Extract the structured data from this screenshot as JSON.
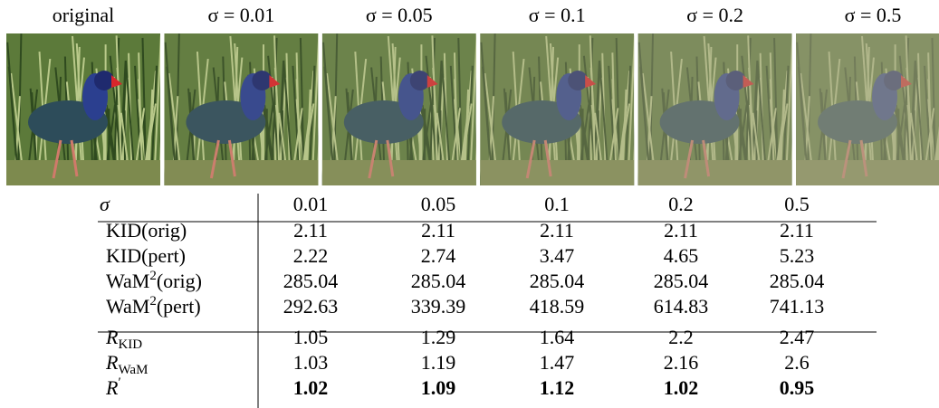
{
  "figure": {
    "panels": [
      "original",
      "σ = 0.01",
      "σ = 0.05",
      "σ = 0.1",
      "σ = 0.2",
      "σ = 0.5"
    ]
  },
  "table": {
    "header": {
      "label": "σ",
      "values": [
        0.01,
        0.05,
        0.1,
        0.2,
        0.5
      ]
    },
    "rows": [
      {
        "label": {
          "text": "KID(orig)"
        },
        "values": [
          2.11,
          2.11,
          2.11,
          2.11,
          2.11
        ]
      },
      {
        "label": {
          "text": "KID(pert)"
        },
        "values": [
          2.22,
          2.74,
          3.47,
          4.65,
          5.23
        ]
      },
      {
        "label": {
          "text": "WaM",
          "sup": "2",
          "after": "(orig)"
        },
        "values": [
          285.04,
          285.04,
          285.04,
          285.04,
          285.04
        ]
      },
      {
        "label": {
          "text": "WaM",
          "sup": "2",
          "after": "(pert)"
        },
        "values": [
          292.63,
          339.39,
          418.59,
          614.83,
          741.13
        ]
      },
      {
        "label": {
          "text": "R",
          "sub": "KID",
          "italic": true
        },
        "values": [
          1.05,
          1.29,
          1.64,
          2.2,
          2.47
        ]
      },
      {
        "label": {
          "text": "R",
          "sub": "WaM",
          "italic": true
        },
        "values": [
          1.03,
          1.19,
          1.47,
          2.16,
          2.6
        ]
      },
      {
        "label": {
          "text": "R",
          "sup": "′",
          "italic": true
        },
        "values": [
          1.02,
          1.09,
          1.12,
          1.02,
          0.95
        ],
        "bold": true
      }
    ]
  }
}
